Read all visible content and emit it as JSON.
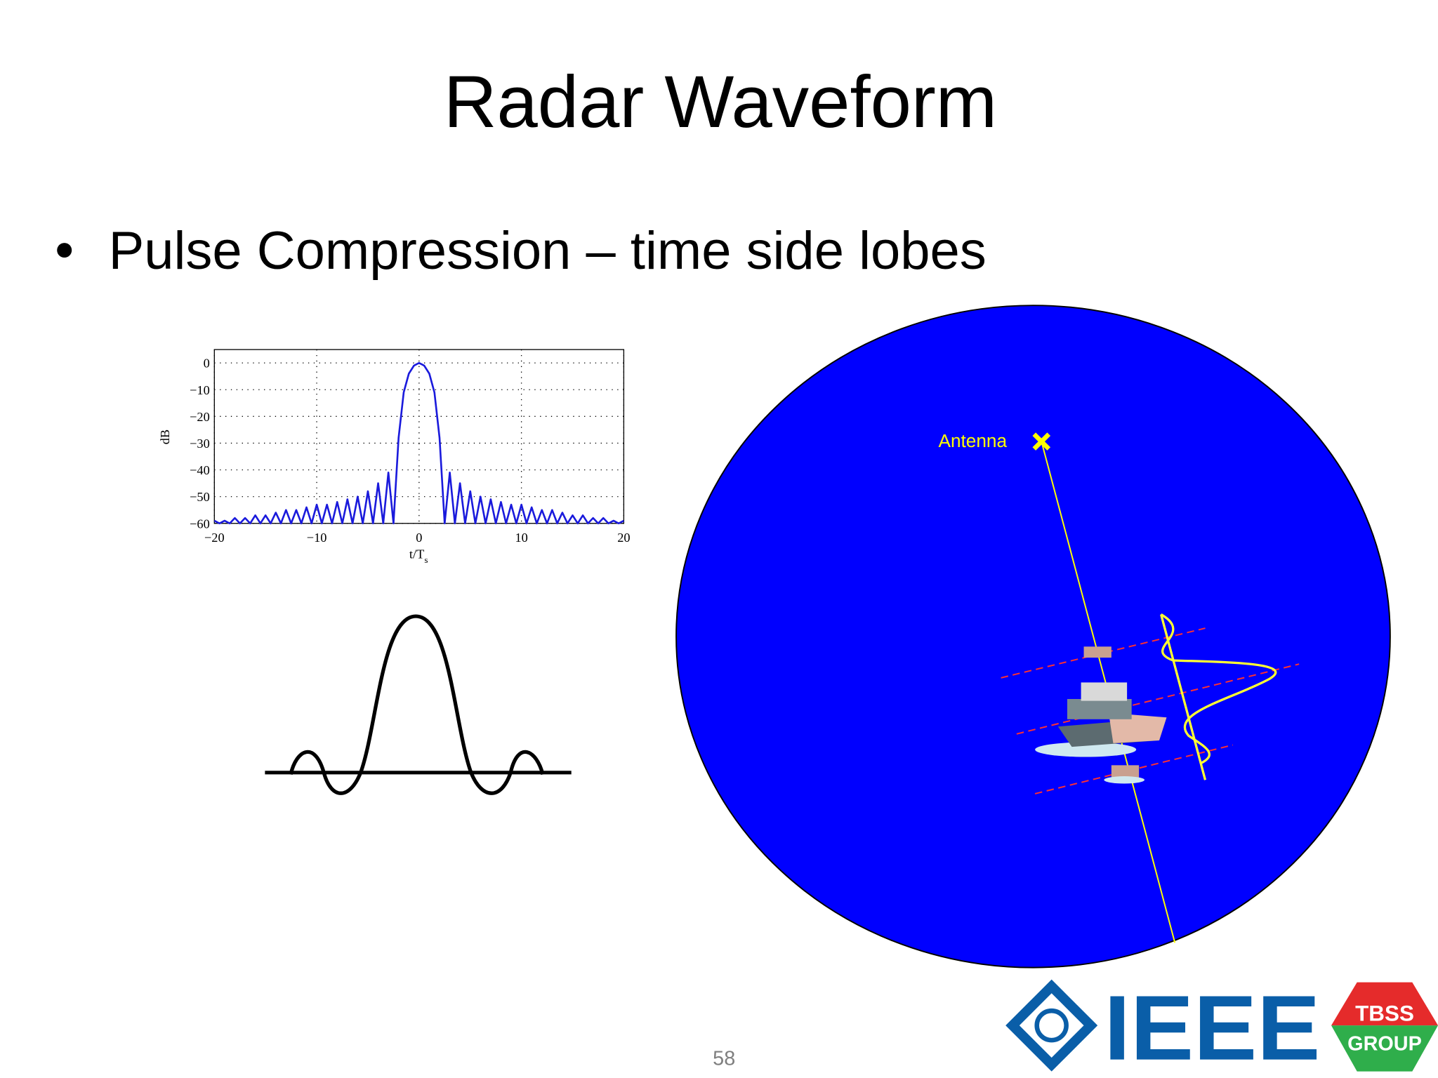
{
  "slide": {
    "title": "Radar Waveform",
    "bullet": "Pulse Compression – time side lobes",
    "antenna_label": "Antenna",
    "page_number": "58",
    "logo": {
      "ieee": "IEEE",
      "tbss": "TBSS",
      "group": "GROUP"
    }
  },
  "chart_data": {
    "type": "line",
    "y_label": "dB",
    "x_label": "t/T",
    "x_label_sub": "s",
    "color": "#1a1adc",
    "grid": true,
    "xlim": [
      -20,
      20
    ],
    "ylim": [
      -60,
      5
    ],
    "xticks": [
      {
        "value": -20,
        "label": "−20"
      },
      {
        "value": -10,
        "label": "−10"
      },
      0,
      10,
      20
    ],
    "yticks": [
      0,
      {
        "value": -10,
        "label": "−10"
      },
      {
        "value": -20,
        "label": "−20"
      },
      {
        "value": -30,
        "label": "−30"
      },
      {
        "value": -40,
        "label": "−40"
      },
      {
        "value": -50,
        "label": "−50"
      },
      {
        "value": -60,
        "label": "−60"
      }
    ],
    "x": [
      -20,
      -19.5,
      -19,
      -18.5,
      -18,
      -17.5,
      -17,
      -16.5,
      -16,
      -15.5,
      -15,
      -14.5,
      -14,
      -13.5,
      -13,
      -12.5,
      -12,
      -11.5,
      -11,
      -10.5,
      -10,
      -9.5,
      -9,
      -8.5,
      -8,
      -7.5,
      -7,
      -6.5,
      -6,
      -5.5,
      -5,
      -4.5,
      -4,
      -3.5,
      -3,
      -2.5,
      -2,
      -1.5,
      -1,
      -0.5,
      0,
      0.5,
      1,
      1.5,
      2,
      2.5,
      3,
      3.5,
      4,
      4.5,
      5,
      5.5,
      6,
      6.5,
      7,
      7.5,
      8,
      8.5,
      9,
      9.5,
      10,
      10.5,
      11,
      11.5,
      12,
      12.5,
      13,
      13.5,
      14,
      14.5,
      15,
      15.5,
      16,
      16.5,
      17,
      17.5,
      18,
      18.5,
      19,
      19.5,
      20
    ],
    "values": [
      -59,
      -60,
      -59,
      -60,
      -58,
      -60,
      -58,
      -60,
      -57,
      -60,
      -57,
      -60,
      -56,
      -60,
      -55,
      -60,
      -55,
      -60,
      -54,
      -60,
      -53,
      -60,
      -53,
      -60,
      -52,
      -60,
      -51,
      -60,
      -50,
      -60,
      -48,
      -60,
      -45,
      -60,
      -41,
      -60,
      -28,
      -11,
      -4,
      -1,
      0,
      -1,
      -4,
      -11,
      -28,
      -60,
      -41,
      -60,
      -45,
      -60,
      -48,
      -60,
      -50,
      -60,
      -51,
      -60,
      -52,
      -60,
      -53,
      -60,
      -53,
      -60,
      -54,
      -60,
      -55,
      -60,
      -55,
      -60,
      -56,
      -60,
      -57,
      -60,
      -57,
      -60,
      -58,
      -60,
      -58,
      -60,
      -59,
      -60,
      -59
    ]
  }
}
